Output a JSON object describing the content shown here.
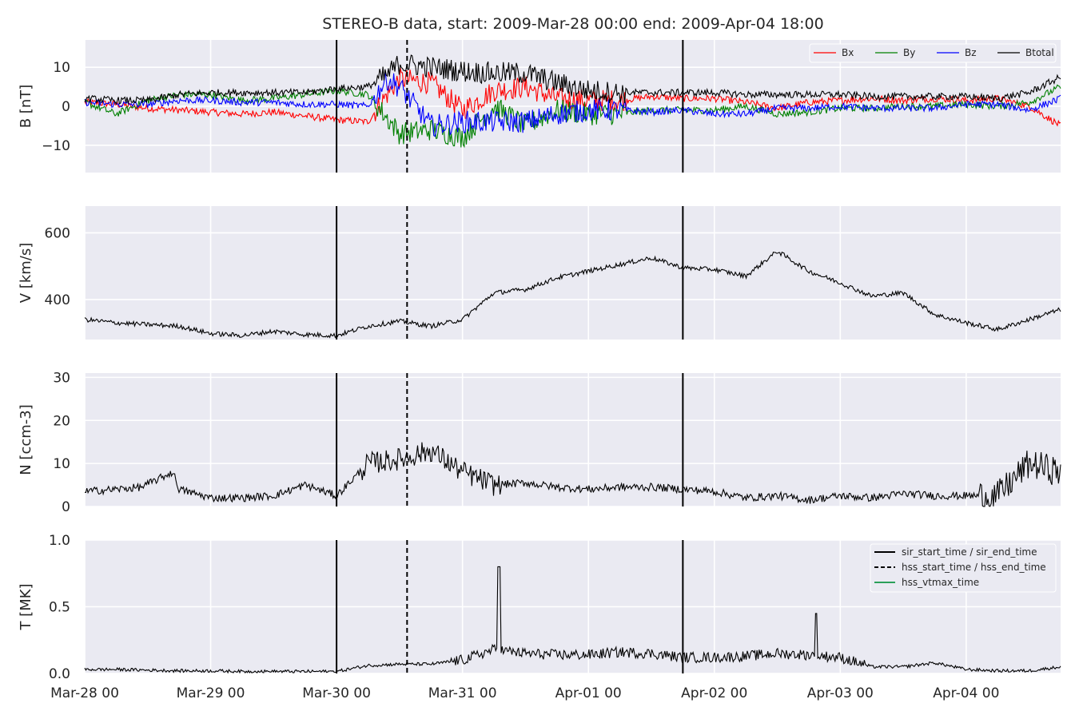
{
  "title": "STEREO-B data, start: 2009-Mar-28 00:00  end: 2009-Apr-04 18:00",
  "colors": {
    "bg": "#EAEAF2",
    "grid": "#FFFFFF",
    "Bx": "#FF0000",
    "By": "#008000",
    "Bz": "#0000FF",
    "Btotal": "#000000",
    "marker": "#000000",
    "vtmax": "#2CA05A"
  },
  "x_ticks": [
    "Mar-28 00",
    "Mar-29 00",
    "Mar-30 00",
    "Mar-31 00",
    "Apr-01 00",
    "Apr-02 00",
    "Apr-03 00",
    "Apr-04 00"
  ],
  "markers": [
    {
      "style": "solid",
      "day": 2.0
    },
    {
      "style": "dashed",
      "day": 2.56
    },
    {
      "style": "solid",
      "day": 4.75
    }
  ],
  "legend_top": [
    "Bx",
    "By",
    "Bz",
    "Btotal"
  ],
  "legend_bottom": [
    "sir_start_time / sir_end_time",
    "hss_start_time / hss_end_time",
    "hss_vtmax_time"
  ],
  "chart_data": [
    {
      "type": "line",
      "ylabel": "B [nT]",
      "ylim": [
        -17,
        17
      ],
      "yticks": [
        {
          "v": 10,
          "label": "10"
        },
        {
          "v": 0,
          "label": "0"
        },
        {
          "v": -10,
          "label": "−10"
        }
      ],
      "legend": "top-right",
      "x": [
        0,
        0.25,
        0.5,
        0.75,
        1.0,
        1.25,
        1.5,
        1.75,
        2.0,
        2.25,
        2.4,
        2.5,
        2.75,
        3.0,
        3.25,
        3.5,
        3.75,
        4.0,
        4.25,
        4.5,
        4.75,
        5.0,
        5.25,
        5.5,
        5.75,
        6.0,
        6.25,
        6.5,
        6.75,
        7.0,
        7.25,
        7.5,
        7.75
      ],
      "series": [
        {
          "name": "Bx",
          "values": [
            1,
            0.5,
            -0.5,
            -1,
            -1.5,
            -2,
            -1.5,
            -2.5,
            -3.5,
            -4,
            3,
            7,
            6,
            -1,
            4,
            5,
            2,
            1.5,
            1.5,
            2.5,
            2,
            2,
            1,
            -0.5,
            1,
            1.5,
            2,
            1.5,
            2,
            1.5,
            2,
            0,
            -5
          ]
        },
        {
          "name": "By",
          "values": [
            1,
            -2,
            1.5,
            3,
            3,
            1.5,
            2,
            3,
            4,
            3,
            -3,
            -7,
            -6,
            -8,
            0,
            -5,
            -1,
            -2,
            -2,
            -1,
            -1,
            -1,
            0,
            -2,
            -1.5,
            -0.5,
            -0.5,
            0,
            0,
            0.5,
            0,
            1,
            5
          ]
        },
        {
          "name": "Bz",
          "values": [
            1,
            0.5,
            0.5,
            1.5,
            1.5,
            1,
            1,
            0.5,
            0.5,
            0,
            7,
            5,
            -5,
            -4,
            -4,
            -4,
            -2,
            -1,
            -1,
            -1.5,
            -1,
            -2,
            -2,
            -0.5,
            -0.5,
            0,
            -0.5,
            -0.5,
            -0.5,
            0.5,
            0.5,
            -1,
            2
          ]
        },
        {
          "name": "Btotal",
          "values": [
            2,
            1.5,
            1.5,
            3,
            3.5,
            3.5,
            3.5,
            3.5,
            4.5,
            5,
            8,
            11,
            10,
            9,
            8.5,
            8.5,
            6,
            4,
            3.5,
            3.5,
            3.5,
            3.5,
            3,
            3,
            3,
            3,
            2.5,
            2.5,
            2.5,
            2.5,
            2,
            3.5,
            7.5
          ]
        }
      ]
    },
    {
      "type": "line",
      "ylabel": "V [km/s]",
      "ylim": [
        280,
        680
      ],
      "yticks": [
        {
          "v": 600,
          "label": "600"
        },
        {
          "v": 400,
          "label": "400"
        }
      ],
      "x": [
        0,
        0.25,
        0.5,
        0.75,
        1.0,
        1.25,
        1.5,
        1.75,
        2.0,
        2.25,
        2.5,
        2.75,
        3.0,
        3.25,
        3.5,
        3.75,
        4.0,
        4.25,
        4.5,
        4.75,
        5.0,
        5.25,
        5.5,
        5.75,
        6.0,
        6.25,
        6.5,
        6.75,
        7.0,
        7.25,
        7.5,
        7.75
      ],
      "series": [
        {
          "name": "",
          "values": [
            340,
            330,
            325,
            320,
            298,
            292,
            305,
            295,
            292,
            320,
            335,
            320,
            340,
            420,
            430,
            465,
            485,
            505,
            525,
            495,
            490,
            470,
            545,
            485,
            450,
            410,
            420,
            355,
            330,
            310,
            340,
            370
          ]
        }
      ]
    },
    {
      "type": "line",
      "ylabel": "N [ccm-3]",
      "ylim": [
        0,
        31
      ],
      "yticks": [
        {
          "v": 30,
          "label": "30"
        },
        {
          "v": 20,
          "label": "20"
        },
        {
          "v": 10,
          "label": "10"
        },
        {
          "v": 0,
          "label": "0"
        }
      ],
      "x": [
        0,
        0.25,
        0.45,
        0.7,
        0.75,
        1.0,
        1.25,
        1.5,
        1.75,
        2.0,
        2.25,
        2.5,
        2.75,
        3.0,
        3.25,
        3.5,
        3.75,
        4.0,
        4.25,
        4.5,
        4.75,
        5.0,
        5.25,
        5.5,
        5.75,
        6.0,
        6.25,
        6.5,
        6.75,
        7.0,
        7.25,
        7.5,
        7.75
      ],
      "series": [
        {
          "name": "",
          "values": [
            3.5,
            4,
            4.5,
            8,
            4,
            2,
            2,
            2.5,
            5,
            2.5,
            10,
            11,
            13,
            8,
            5,
            5.5,
            4.5,
            4,
            4.5,
            4.5,
            4,
            3.5,
            2,
            2.5,
            1.5,
            2.5,
            2,
            3,
            2.5,
            2.5,
            2.5,
            10,
            8
          ]
        }
      ]
    },
    {
      "type": "line",
      "ylabel": "T [MK]",
      "ylim": [
        0,
        1.0
      ],
      "yticks": [
        {
          "v": 1.0,
          "label": "1.0"
        },
        {
          "v": 0.5,
          "label": "0.5"
        },
        {
          "v": 0.0,
          "label": "0.0"
        }
      ],
      "legend": "top-right",
      "x": [
        0,
        0.25,
        0.5,
        0.75,
        1.0,
        1.25,
        1.5,
        1.75,
        2.0,
        2.25,
        2.5,
        2.75,
        3.0,
        3.25,
        3.5,
        3.75,
        4.0,
        4.25,
        4.5,
        4.75,
        5.0,
        5.25,
        5.5,
        5.75,
        6.0,
        6.25,
        6.5,
        6.75,
        7.0,
        7.25,
        7.5,
        7.75
      ],
      "series": [
        {
          "name": "",
          "values": [
            0.03,
            0.03,
            0.025,
            0.02,
            0.02,
            0.015,
            0.015,
            0.015,
            0.015,
            0.06,
            0.07,
            0.07,
            0.1,
            0.18,
            0.15,
            0.14,
            0.14,
            0.16,
            0.15,
            0.12,
            0.12,
            0.13,
            0.15,
            0.14,
            0.12,
            0.05,
            0.05,
            0.08,
            0.03,
            0.02,
            0.02,
            0.05
          ]
        }
      ]
    }
  ]
}
